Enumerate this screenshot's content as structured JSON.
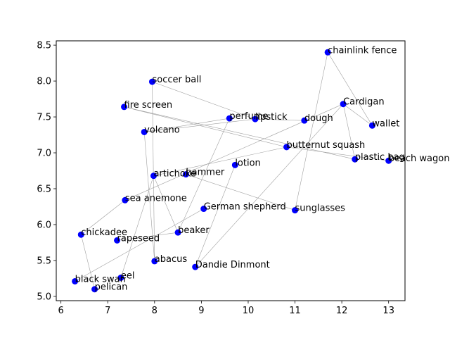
{
  "chart_data": {
    "type": "scatter",
    "title": "",
    "xlabel": "",
    "ylabel": "",
    "xlim": [
      5.9,
      13.35
    ],
    "ylim": [
      4.94,
      8.56
    ],
    "xticks": [
      6,
      7,
      8,
      9,
      10,
      11,
      12,
      13
    ],
    "yticks": [
      5.0,
      5.5,
      6.0,
      6.5,
      7.0,
      7.5,
      8.0,
      8.5
    ],
    "xtick_labels": [
      "6",
      "7",
      "8",
      "9",
      "10",
      "11",
      "12",
      "13"
    ],
    "ytick_labels": [
      "5.0",
      "5.5",
      "6.0",
      "6.5",
      "7.0",
      "7.5",
      "8.0",
      "8.5"
    ],
    "grid": false,
    "marker_color": "#0000ff",
    "edge_color": "#a0a0a0",
    "points": [
      {
        "label": "chainlink fence",
        "x": 11.7,
        "y": 8.4
      },
      {
        "label": "soccer ball",
        "x": 7.95,
        "y": 7.99
      },
      {
        "label": "Cardigan",
        "x": 12.03,
        "y": 7.68
      },
      {
        "label": "fire screen",
        "x": 7.35,
        "y": 7.64
      },
      {
        "label": "perfume",
        "x": 9.6,
        "y": 7.48
      },
      {
        "label": "lipstick",
        "x": 10.15,
        "y": 7.47
      },
      {
        "label": "dough",
        "x": 11.2,
        "y": 7.45
      },
      {
        "label": "wallet",
        "x": 12.65,
        "y": 7.38
      },
      {
        "label": "volcano",
        "x": 7.78,
        "y": 7.29
      },
      {
        "label": "butternut squash",
        "x": 10.82,
        "y": 7.08
      },
      {
        "label": "plastic bag",
        "x": 12.28,
        "y": 6.91
      },
      {
        "label": "beach wagon",
        "x": 13.0,
        "y": 6.89
      },
      {
        "label": "lotion",
        "x": 9.72,
        "y": 6.83
      },
      {
        "label": "hammer",
        "x": 8.67,
        "y": 6.7
      },
      {
        "label": "artichoke",
        "x": 7.98,
        "y": 6.68
      },
      {
        "label": "sea anemone",
        "x": 7.37,
        "y": 6.34
      },
      {
        "label": "German shepherd",
        "x": 9.05,
        "y": 6.22
      },
      {
        "label": "sunglasses",
        "x": 11.0,
        "y": 6.2
      },
      {
        "label": "beaker",
        "x": 8.5,
        "y": 5.89
      },
      {
        "label": "chickadee",
        "x": 6.43,
        "y": 5.86
      },
      {
        "label": "rapeseed",
        "x": 7.2,
        "y": 5.78
      },
      {
        "label": "abacus",
        "x": 8.0,
        "y": 5.49
      },
      {
        "label": "Dandie Dinmont",
        "x": 8.87,
        "y": 5.41
      },
      {
        "label": "eel",
        "x": 7.28,
        "y": 5.26
      },
      {
        "label": "black swan",
        "x": 6.3,
        "y": 5.21
      },
      {
        "label": "pelican",
        "x": 6.72,
        "y": 5.1
      }
    ],
    "edges": [
      [
        "chainlink fence",
        "wallet"
      ],
      [
        "chainlink fence",
        "sunglasses"
      ],
      [
        "soccer ball",
        "lipstick"
      ],
      [
        "soccer ball",
        "abacus"
      ],
      [
        "Cardigan",
        "plastic bag"
      ],
      [
        "Cardigan",
        "wallet"
      ],
      [
        "Cardigan",
        "Dandie Dinmont"
      ],
      [
        "Cardigan",
        "sea anemone"
      ],
      [
        "fire screen",
        "butternut squash"
      ],
      [
        "fire screen",
        "plastic bag"
      ],
      [
        "perfume",
        "volcano"
      ],
      [
        "perfume",
        "beaker"
      ],
      [
        "lipstick",
        "volcano"
      ],
      [
        "lipstick",
        "dough"
      ],
      [
        "butternut squash",
        "beach wagon"
      ],
      [
        "butternut squash",
        "artichoke"
      ],
      [
        "lotion",
        "Dandie Dinmont"
      ],
      [
        "hammer",
        "sunglasses"
      ],
      [
        "artichoke",
        "eel"
      ],
      [
        "artichoke",
        "beaker"
      ],
      [
        "beaker",
        "rapeseed"
      ],
      [
        "chickadee",
        "sea anemone"
      ],
      [
        "chickadee",
        "pelican"
      ],
      [
        "German shepherd",
        "black swan"
      ],
      [
        "volcano",
        "abacus"
      ]
    ]
  }
}
